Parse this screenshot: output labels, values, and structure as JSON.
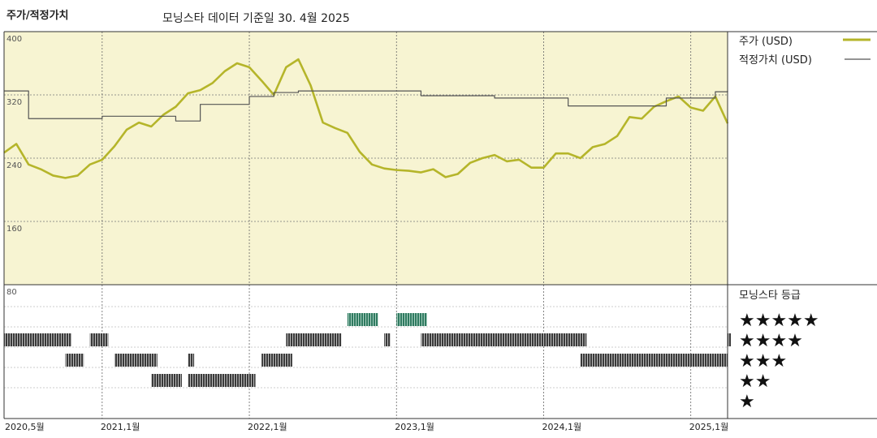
{
  "header": {
    "title": "주가/적정가치",
    "subtitle": "모닝스타 데이터 기준일 30. 4월 2025"
  },
  "legend": {
    "price_label": "주가 (USD)",
    "fair_label": "적정가치 (USD)",
    "rating_title": "모닝스타 등급",
    "price_color": "#b5b52a",
    "fair_color": "#555555"
  },
  "chart_data": {
    "type": "line",
    "y_ticks": [
      "400",
      "320",
      "240",
      "160",
      "80"
    ],
    "ylim": [
      160,
      400
    ],
    "x_ticks": [
      "2020,5월",
      "2021,1월",
      "2022,1월",
      "2023,1월",
      "2024,1월",
      "2025,1월"
    ],
    "x_range": [
      "2020-05",
      "2025-04"
    ],
    "grid": true,
    "series": [
      {
        "name": "주가 (USD)",
        "color": "#b5b52a",
        "points": [
          [
            "2020-05",
            247
          ],
          [
            "2020-06",
            258
          ],
          [
            "2020-07",
            232
          ],
          [
            "2020-08",
            226
          ],
          [
            "2020-09",
            218
          ],
          [
            "2020-10",
            215
          ],
          [
            "2020-11",
            218
          ],
          [
            "2020-12",
            232
          ],
          [
            "2021-01",
            238
          ],
          [
            "2021-02",
            255
          ],
          [
            "2021-03",
            276
          ],
          [
            "2021-04",
            285
          ],
          [
            "2021-05",
            280
          ],
          [
            "2021-06",
            295
          ],
          [
            "2021-07",
            305
          ],
          [
            "2021-08",
            322
          ],
          [
            "2021-09",
            326
          ],
          [
            "2021-10",
            335
          ],
          [
            "2021-11",
            350
          ],
          [
            "2021-12",
            360
          ],
          [
            "2022-01",
            355
          ],
          [
            "2022-02",
            338
          ],
          [
            "2022-03",
            320
          ],
          [
            "2022-04",
            355
          ],
          [
            "2022-05",
            365
          ],
          [
            "2022-06",
            332
          ],
          [
            "2022-07",
            285
          ],
          [
            "2022-08",
            278
          ],
          [
            "2022-09",
            272
          ],
          [
            "2022-10",
            248
          ],
          [
            "2022-11",
            232
          ],
          [
            "2022-12",
            227
          ],
          [
            "2023-01",
            225
          ],
          [
            "2023-02",
            224
          ],
          [
            "2023-03",
            222
          ],
          [
            "2023-04",
            226
          ],
          [
            "2023-05",
            216
          ],
          [
            "2023-06",
            220
          ],
          [
            "2023-07",
            234
          ],
          [
            "2023-08",
            240
          ],
          [
            "2023-09",
            244
          ],
          [
            "2023-10",
            236
          ],
          [
            "2023-11",
            238
          ],
          [
            "2023-12",
            228
          ],
          [
            "2024-01",
            228
          ],
          [
            "2024-02",
            246
          ],
          [
            "2024-03",
            246
          ],
          [
            "2024-04",
            240
          ],
          [
            "2024-05",
            254
          ],
          [
            "2024-06",
            258
          ],
          [
            "2024-07",
            268
          ],
          [
            "2024-08",
            292
          ],
          [
            "2024-09",
            290
          ],
          [
            "2024-10",
            305
          ],
          [
            "2024-11",
            312
          ],
          [
            "2024-12",
            318
          ],
          [
            "2025-01",
            304
          ],
          [
            "2025-02",
            300
          ],
          [
            "2025-03",
            318
          ],
          [
            "2025-04",
            284
          ]
        ]
      },
      {
        "name": "적정가치 (USD)",
        "color": "#555555",
        "step": true,
        "points": [
          [
            "2020-05",
            325
          ],
          [
            "2020-07",
            290
          ],
          [
            "2021-01",
            293
          ],
          [
            "2021-07",
            287
          ],
          [
            "2021-09",
            308
          ],
          [
            "2022-01",
            318
          ],
          [
            "2022-03",
            323
          ],
          [
            "2022-05",
            325
          ],
          [
            "2023-03",
            319
          ],
          [
            "2023-09",
            316
          ],
          [
            "2024-03",
            306
          ],
          [
            "2024-11",
            316
          ],
          [
            "2025-03",
            324
          ],
          [
            "2025-04",
            325
          ]
        ]
      }
    ],
    "rating_series": {
      "name": "모닝스타 등급",
      "levels": [
        "★★★★★",
        "★★★★",
        "★★★",
        "★★",
        "★"
      ],
      "segments": [
        {
          "stars": 4,
          "start": "2020-05",
          "end": "2020-10"
        },
        {
          "stars": 3,
          "start": "2020-10",
          "end": "2020-11"
        },
        {
          "stars": 4,
          "start": "2020-12",
          "end": "2021-01"
        },
        {
          "stars": 3,
          "start": "2021-02",
          "end": "2021-05"
        },
        {
          "stars": 2,
          "start": "2021-05",
          "end": "2021-07"
        },
        {
          "stars": 3,
          "start": "2021-08",
          "end": "2021-08"
        },
        {
          "stars": 2,
          "start": "2021-08",
          "end": "2022-01"
        },
        {
          "stars": 3,
          "start": "2022-02",
          "end": "2022-04"
        },
        {
          "stars": 4,
          "start": "2022-04",
          "end": "2022-08"
        },
        {
          "stars": 5,
          "start": "2022-09",
          "end": "2022-11"
        },
        {
          "stars": 4,
          "start": "2022-12",
          "end": "2022-12"
        },
        {
          "stars": 5,
          "start": "2023-01",
          "end": "2023-03"
        },
        {
          "stars": 4,
          "start": "2023-03",
          "end": "2024-04"
        },
        {
          "stars": 3,
          "start": "2024-04",
          "end": "2025-04"
        },
        {
          "stars": 4,
          "start": "2025-04",
          "end": "2025-04"
        }
      ]
    }
  }
}
